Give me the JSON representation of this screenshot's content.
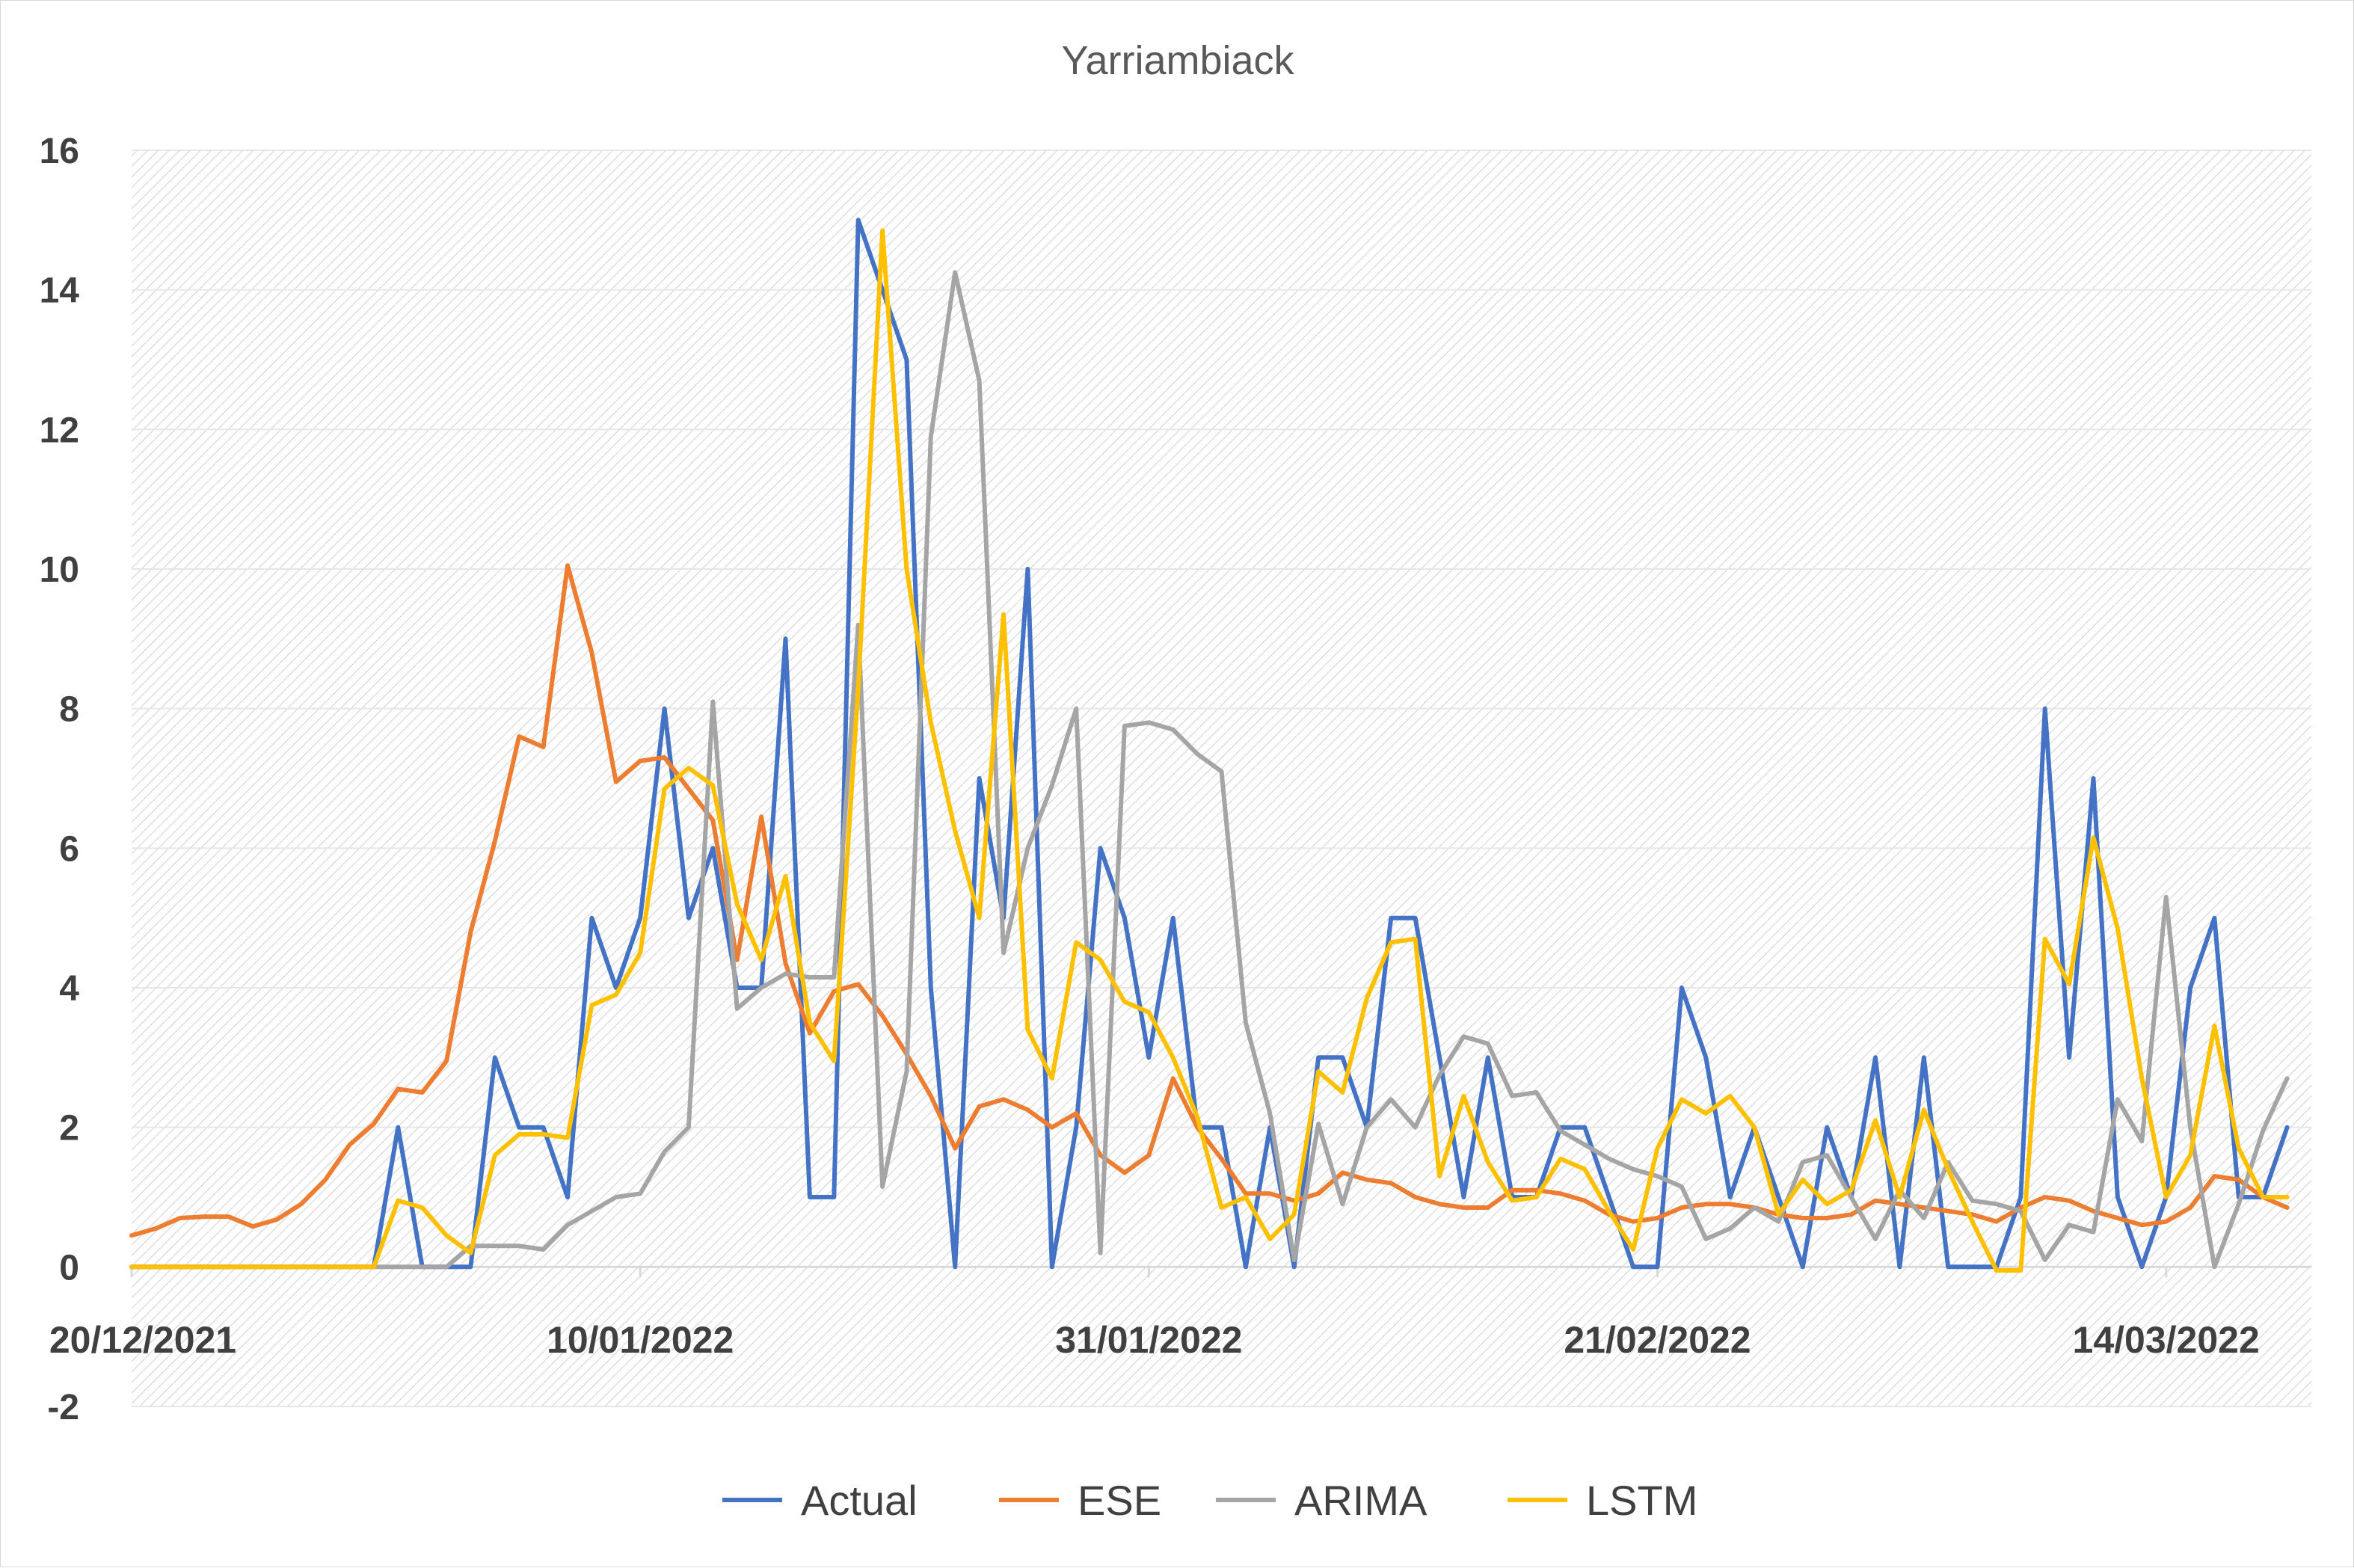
{
  "chart_data": {
    "type": "line",
    "title": "Yarriambiack",
    "xlabel": "",
    "ylabel": "",
    "ylim": [
      -2,
      16
    ],
    "y_ticks": [
      -2,
      0,
      2,
      4,
      6,
      8,
      10,
      12,
      14,
      16
    ],
    "x_tick_labels": [
      "20/12/2021",
      "10/01/2022",
      "31/01/2022",
      "21/02/2022",
      "14/03/2022"
    ],
    "x_tick_days": [
      0,
      21,
      42,
      63,
      84
    ],
    "x_start": "2021-12-20",
    "x_end_day": 90,
    "grid": true,
    "legend_position": "bottom",
    "series": [
      {
        "name": "Actual",
        "color": "#4472C4",
        "values": [
          0,
          0,
          0,
          0,
          0,
          0,
          0,
          0,
          0,
          0,
          0,
          2,
          0,
          0,
          0,
          3,
          2,
          2,
          1,
          5,
          4,
          5,
          8,
          5,
          6,
          4,
          4,
          9,
          1,
          1,
          15,
          14,
          13,
          4,
          0,
          7,
          5,
          10,
          0,
          2,
          6,
          5,
          3,
          5,
          2,
          2,
          0,
          2,
          0,
          3,
          3,
          2,
          5,
          5,
          3,
          1,
          3,
          1,
          1,
          2,
          2,
          1,
          0,
          0,
          4,
          3,
          1,
          2,
          1,
          0,
          2,
          1,
          3,
          0,
          3,
          0,
          0,
          0,
          1,
          8,
          3,
          7,
          1,
          0,
          1,
          4,
          5,
          1,
          1,
          2
        ]
      },
      {
        "name": "ESE",
        "color": "#ED7D31",
        "values": [
          0.45,
          0.55,
          0.7,
          0.72,
          0.72,
          0.58,
          0.68,
          0.9,
          1.25,
          1.75,
          2.05,
          2.55,
          2.5,
          2.95,
          4.8,
          6.1,
          7.6,
          7.45,
          10.05,
          8.8,
          6.95,
          7.25,
          7.3,
          6.85,
          6.4,
          4.4,
          6.45,
          4.35,
          3.35,
          3.95,
          4.05,
          3.6,
          3.05,
          2.45,
          1.7,
          2.3,
          2.4,
          2.25,
          2.0,
          2.2,
          1.6,
          1.35,
          1.6,
          2.7,
          2.0,
          1.55,
          1.05,
          1.05,
          0.95,
          1.05,
          1.35,
          1.25,
          1.2,
          1.0,
          0.9,
          0.85,
          0.85,
          1.1,
          1.1,
          1.05,
          0.95,
          0.75,
          0.65,
          0.7,
          0.85,
          0.9,
          0.9,
          0.85,
          0.75,
          0.7,
          0.7,
          0.75,
          0.95,
          0.9,
          0.85,
          0.8,
          0.75,
          0.65,
          0.85,
          1.0,
          0.95,
          0.8,
          0.7,
          0.6,
          0.65,
          0.85,
          1.3,
          1.25,
          1.0,
          0.85
        ]
      },
      {
        "name": "ARIMA",
        "color": "#A5A5A5",
        "values": [
          0,
          0,
          0,
          0,
          0,
          0,
          0,
          0,
          0,
          0,
          0,
          0,
          0,
          0,
          0.3,
          0.3,
          0.3,
          0.25,
          0.6,
          0.8,
          1.0,
          1.05,
          1.65,
          2.0,
          8.1,
          3.7,
          4.0,
          4.2,
          4.15,
          4.15,
          9.2,
          1.15,
          2.8,
          11.9,
          14.25,
          12.7,
          4.5,
          6.0,
          6.9,
          8.0,
          0.2,
          7.75,
          7.8,
          7.7,
          7.35,
          7.1,
          3.5,
          2.2,
          0.1,
          2.05,
          0.9,
          2.0,
          2.4,
          2.0,
          2.75,
          3.3,
          3.2,
          2.45,
          2.5,
          1.95,
          1.75,
          1.55,
          1.4,
          1.3,
          1.15,
          0.4,
          0.55,
          0.85,
          0.65,
          1.5,
          1.6,
          1.0,
          0.4,
          1.1,
          0.7,
          1.5,
          0.95,
          0.9,
          0.8,
          0.1,
          0.6,
          0.5,
          2.4,
          1.8,
          5.3,
          2.0,
          0.0,
          0.9,
          1.95,
          2.7
        ]
      },
      {
        "name": "LSTM",
        "color": "#FFC000",
        "values": [
          0,
          0,
          0,
          0,
          0,
          0,
          0,
          0,
          0,
          0,
          0,
          0.95,
          0.85,
          0.45,
          0.2,
          1.6,
          1.9,
          1.9,
          1.85,
          3.75,
          3.9,
          4.5,
          6.85,
          7.15,
          6.9,
          5.2,
          4.4,
          5.6,
          3.5,
          2.95,
          8.3,
          14.85,
          10.0,
          7.8,
          6.25,
          5.0,
          9.35,
          3.4,
          2.7,
          4.65,
          4.4,
          3.8,
          3.65,
          3.0,
          2.15,
          0.85,
          1.0,
          0.4,
          0.75,
          2.8,
          2.5,
          3.85,
          4.65,
          4.7,
          1.3,
          2.45,
          1.5,
          0.95,
          1.0,
          1.55,
          1.4,
          0.8,
          0.25,
          1.7,
          2.4,
          2.2,
          2.45,
          2.0,
          0.75,
          1.25,
          0.9,
          1.1,
          2.1,
          1.0,
          2.25,
          1.4,
          0.65,
          -0.05,
          -0.05,
          4.7,
          4.05,
          6.15,
          4.85,
          2.7,
          1.0,
          1.6,
          3.45,
          1.7,
          1.0,
          1.0
        ]
      }
    ]
  }
}
